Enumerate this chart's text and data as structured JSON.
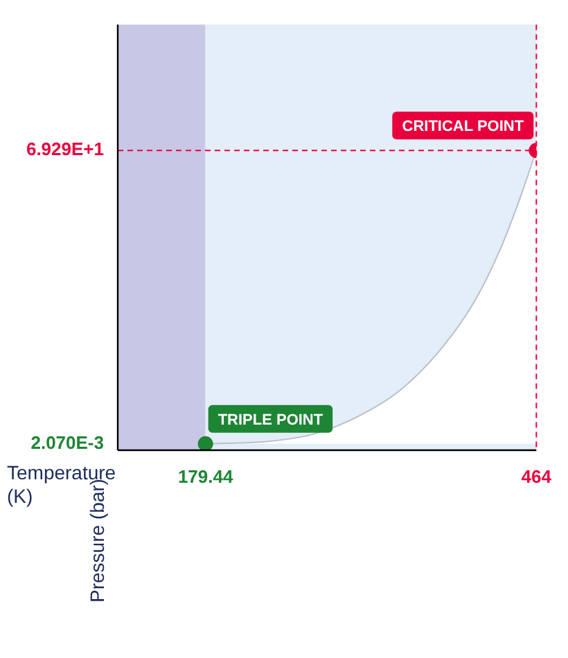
{
  "chart_data": {
    "type": "area",
    "xlabel": "Temperature (K)",
    "ylabel": "Pressure (bar)",
    "xlim": [
      104,
      464
    ],
    "ylim": [
      -1.5,
      99
    ],
    "xticks": [
      179.44,
      464
    ],
    "yticks": [
      {
        "value": 0.00207,
        "label": "2.070E-3"
      },
      {
        "value": 69.29,
        "label": "6.929E+1"
      }
    ],
    "series": [
      {
        "color": "#ffffff",
        "x": [
          179.44,
          233.6,
          270.9,
          309.3,
          346.6,
          383.8,
          410.9,
          433.5,
          448.2,
          464
        ],
        "values": [
          0.00207,
          0.6,
          2.2,
          6.3,
          12.6,
          23.0,
          33.7,
          46.3,
          56.7,
          69.29
        ]
      },
      {
        "type": "scatter",
        "marker": "circle",
        "color": "#1e8535",
        "x": [
          179.44
        ],
        "values": [
          0.00207
        ]
      },
      {
        "type": "scatter",
        "marker": "circle",
        "color": "#e8003d",
        "x": [
          464
        ],
        "values": [
          69.29
        ]
      }
    ],
    "bands": [
      {
        "axis": "x",
        "from": 104,
        "to": 179.44,
        "color": "#c8c8e6"
      },
      {
        "axis": "x",
        "from": 179.44,
        "to": 464,
        "color": "#e4eef8"
      }
    ],
    "ref_lines": [
      {
        "axis": "y",
        "value": 69.29,
        "color": "#e8003d",
        "line_style": "dashed"
      },
      {
        "axis": "x",
        "value": 464,
        "color": "#e8003d",
        "line_style": "dashed"
      }
    ],
    "annotations": [
      {
        "text": "TRIPLE POINT",
        "x": 179.44,
        "y": 0.00207
      },
      {
        "text": "CRITICAL POINT",
        "x": 464,
        "y": 69.29
      }
    ],
    "grid": false,
    "legend": false
  }
}
